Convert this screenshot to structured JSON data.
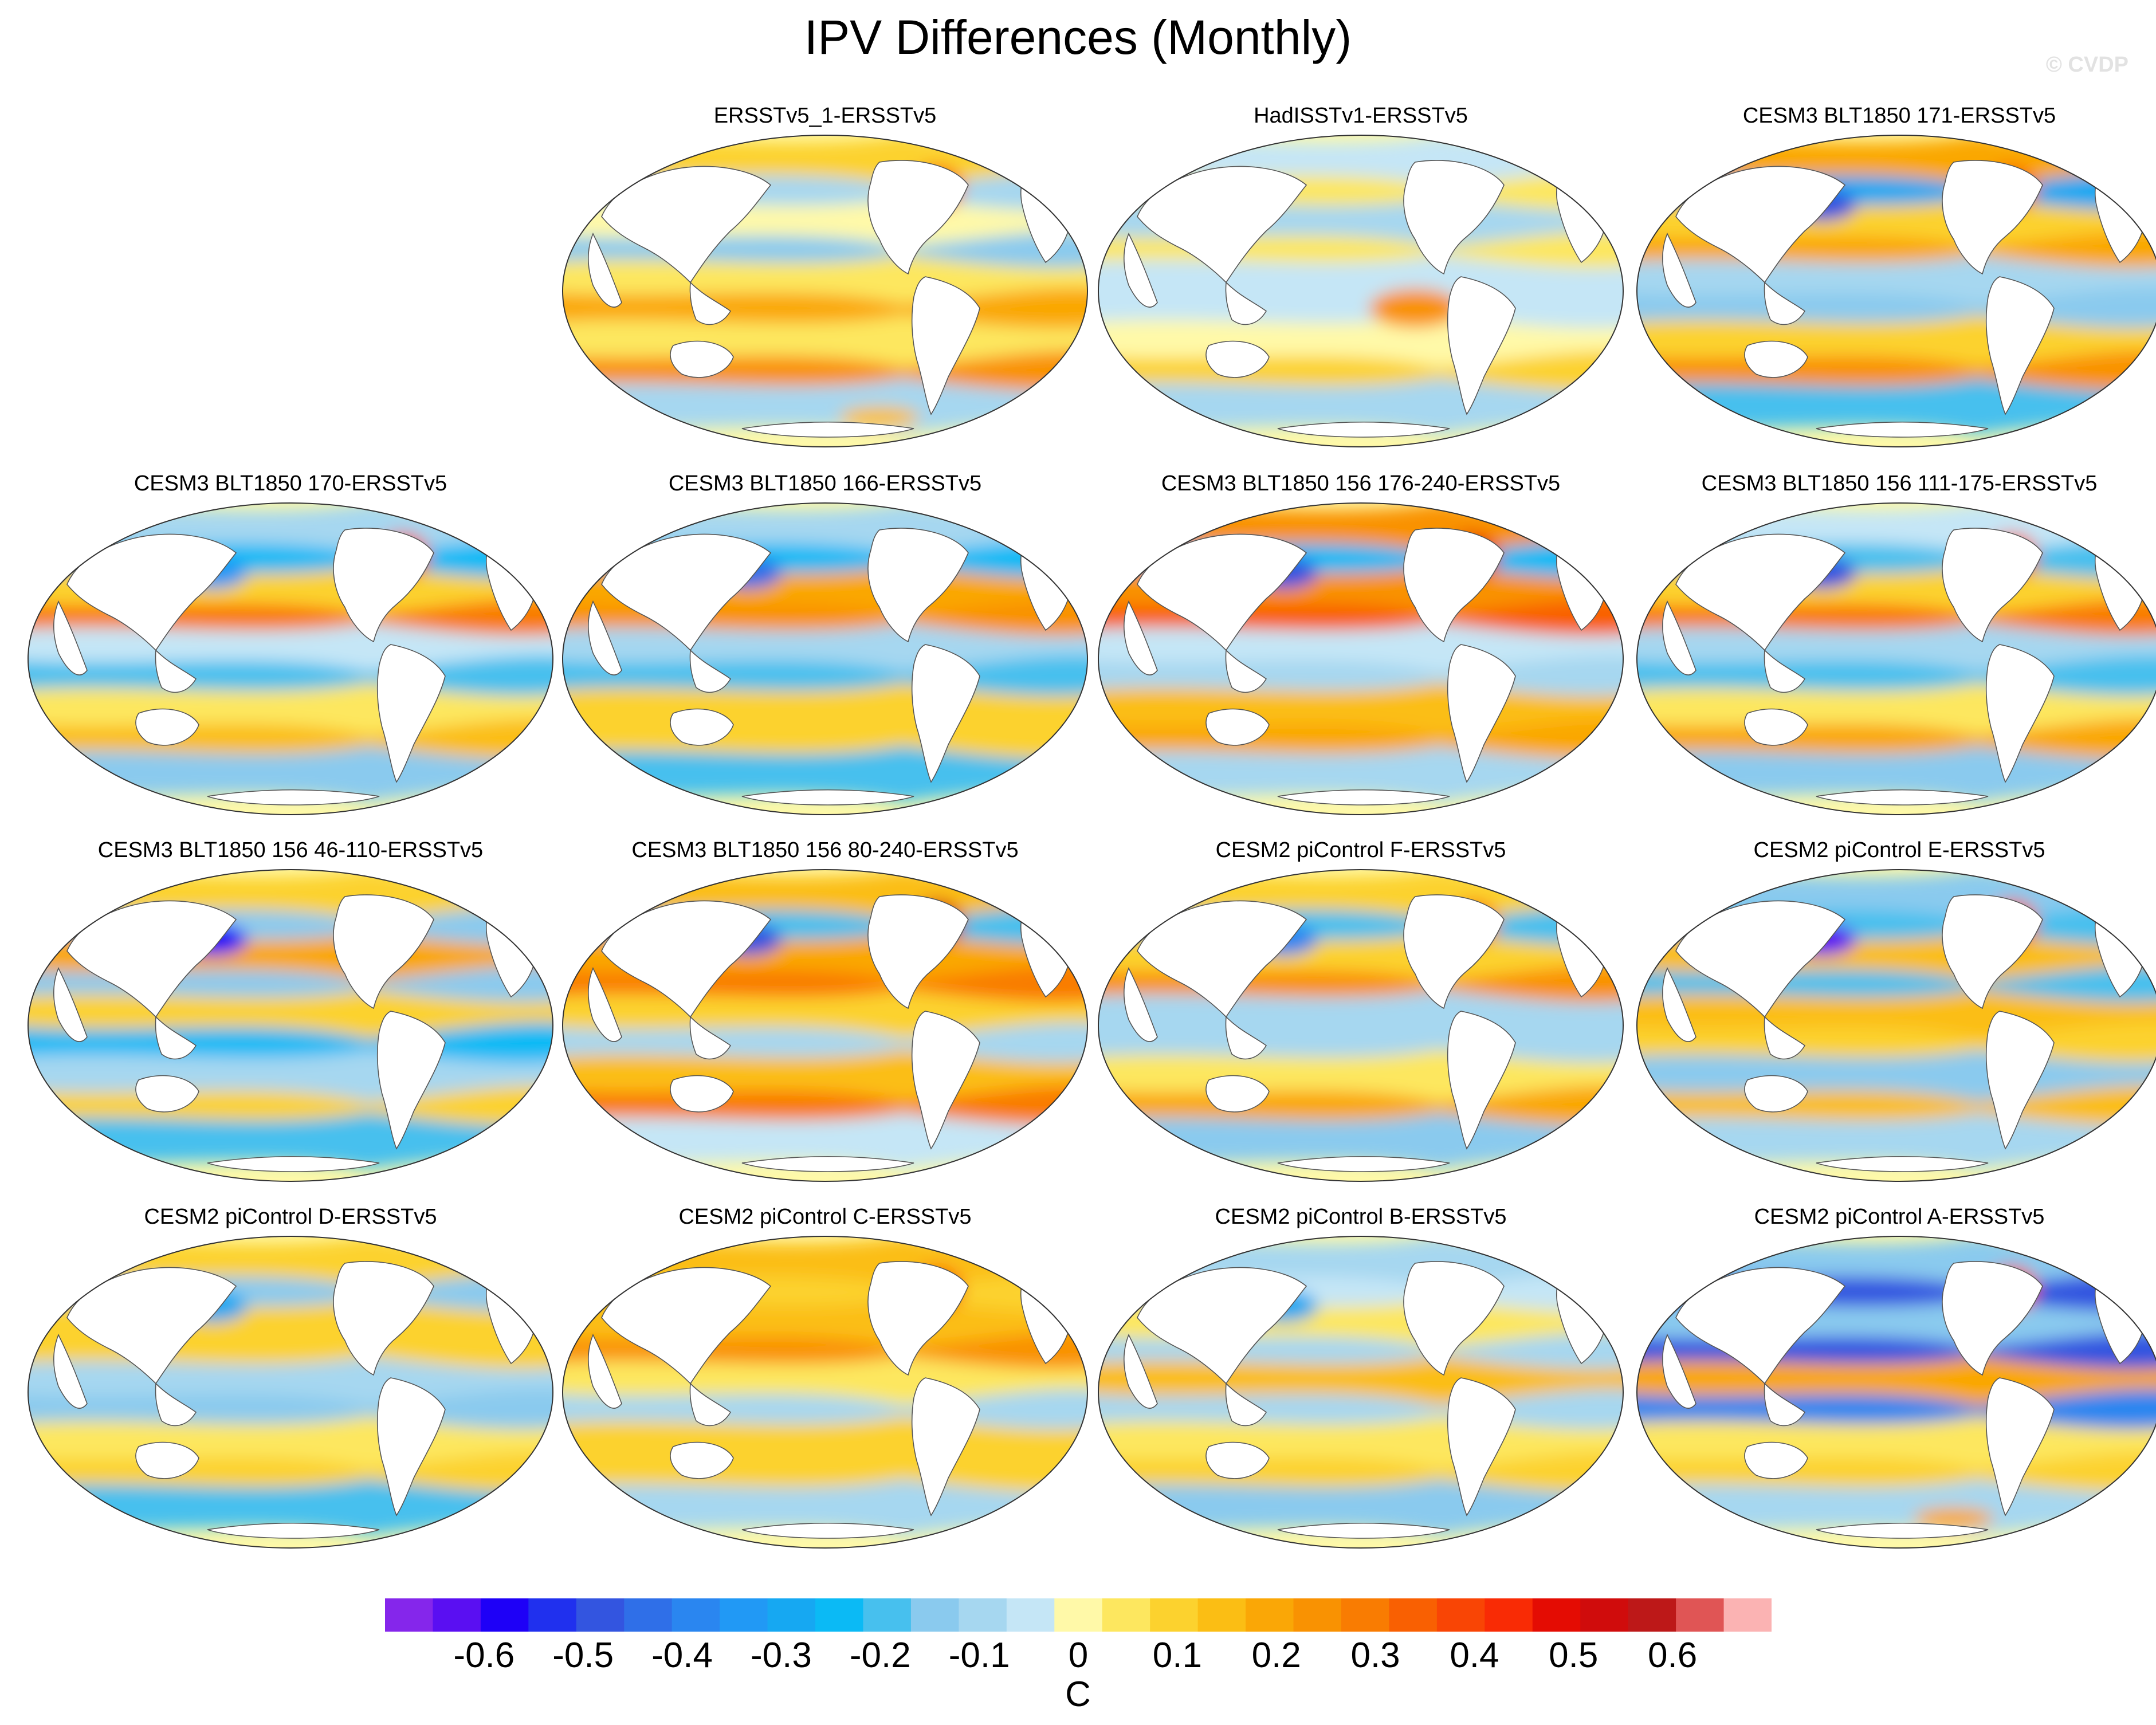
{
  "figure": {
    "title": "IPV Differences (Monthly)",
    "watermark": "© CVDP"
  },
  "panels": [
    {
      "title": "ERSSTv5_1-ERSSTv5",
      "pattern": [
        0.12,
        -0.12,
        0.0,
        -0.14,
        0.05,
        0.18,
        0.05,
        0.22,
        -0.08
      ],
      "blobs": [
        [
          3,
          0.35
        ],
        [
          2,
          0.15
        ]
      ]
    },
    {
      "title": "HadISSTv1-ERSSTv5",
      "pattern": [
        -0.05,
        0.03,
        -0.08,
        0.04,
        -0.05,
        -0.06,
        0.02,
        0.08,
        -0.1
      ],
      "blobs": [
        [
          1,
          0.25
        ]
      ]
    },
    {
      "title": "CESM3 BLT1850 171-ERSSTv5",
      "pattern": [
        0.18,
        -0.3,
        0.08,
        0.2,
        -0.12,
        -0.15,
        0.1,
        0.25,
        -0.2
      ],
      "blobs": [
        [
          0,
          -0.5
        ],
        [
          3,
          0.35
        ]
      ]
    },
    {
      "title": "CESM3 BLT1850 170-ERSSTv5",
      "pattern": [
        -0.12,
        -0.25,
        0.1,
        0.28,
        -0.05,
        -0.18,
        0.05,
        0.15,
        -0.15
      ],
      "blobs": [
        [
          0,
          -0.35
        ],
        [
          3,
          0.45
        ]
      ]
    },
    {
      "title": "CESM3 BLT1850 166-ERSSTv5",
      "pattern": [
        -0.1,
        -0.22,
        0.18,
        0.25,
        -0.12,
        -0.2,
        0.08,
        0.12,
        -0.18
      ],
      "blobs": [
        [
          0,
          -0.45
        ]
      ]
    },
    {
      "title": "CESM3 BLT1850 156 176-240-ERSSTv5",
      "pattern": [
        0.25,
        -0.22,
        0.25,
        0.35,
        -0.05,
        -0.12,
        0.15,
        0.2,
        -0.1
      ],
      "blobs": [
        [
          0,
          -0.5
        ],
        [
          3,
          0.5
        ]
      ]
    },
    {
      "title": "CESM3 BLT1850 156 111-175-ERSSTv5",
      "pattern": [
        -0.05,
        -0.2,
        0.1,
        0.28,
        -0.1,
        -0.2,
        0.05,
        0.18,
        -0.15
      ],
      "blobs": [
        [
          0,
          -0.5
        ],
        [
          3,
          0.4
        ]
      ]
    },
    {
      "title": "CESM3 BLT1850 156 46-110-ERSSTv5",
      "pattern": [
        0.12,
        -0.15,
        0.2,
        -0.15,
        0.12,
        -0.22,
        -0.1,
        0.1,
        -0.2
      ],
      "blobs": [
        [
          0,
          -0.6
        ]
      ]
    },
    {
      "title": "CESM3 BLT1850 156 80-240-ERSSTv5",
      "pattern": [
        0.15,
        -0.18,
        0.2,
        0.28,
        0.1,
        -0.1,
        0.15,
        0.3,
        -0.05
      ],
      "blobs": [
        [
          0,
          -0.5
        ],
        [
          3,
          0.55
        ]
      ]
    },
    {
      "title": "CESM2 piControl F-ERSSTv5",
      "pattern": [
        0.1,
        -0.2,
        0.1,
        0.22,
        -0.08,
        -0.12,
        0.05,
        0.2,
        -0.15
      ],
      "blobs": [
        [
          0,
          -0.4
        ],
        [
          3,
          0.3
        ]
      ]
    },
    {
      "title": "CESM2 piControl E-ERSSTv5",
      "pattern": [
        -0.15,
        -0.2,
        0.15,
        -0.2,
        0.15,
        0.1,
        -0.15,
        0.15,
        -0.1
      ],
      "blobs": [
        [
          0,
          -0.65
        ],
        [
          3,
          0.4
        ]
      ]
    },
    {
      "title": "CESM2 piControl D-ERSSTv5",
      "pattern": [
        0.12,
        -0.15,
        0.1,
        0.12,
        -0.1,
        -0.15,
        0.05,
        0.08,
        -0.18
      ],
      "blobs": [
        [
          0,
          -0.3
        ]
      ]
    },
    {
      "title": "CESM2 piControl C-ERSSTv5",
      "pattern": [
        0.15,
        0.12,
        0.15,
        0.22,
        0.05,
        -0.08,
        0.1,
        0.1,
        -0.1
      ],
      "blobs": [
        [
          3,
          0.35
        ]
      ]
    },
    {
      "title": "CESM2 piControl B-ERSSTv5",
      "pattern": [
        -0.1,
        -0.05,
        0.05,
        -0.12,
        0.15,
        -0.12,
        0.05,
        0.08,
        -0.15
      ],
      "blobs": [
        [
          0,
          -0.3
        ]
      ]
    },
    {
      "title": "CESM2 piControl A-ERSSTv5",
      "pattern": [
        -0.15,
        -0.5,
        -0.15,
        -0.5,
        0.2,
        -0.4,
        0.05,
        0.1,
        -0.1
      ],
      "blobs": [
        [
          3,
          0.45
        ],
        [
          2,
          0.2
        ]
      ]
    }
  ],
  "colorbar": {
    "units": "C",
    "range": [
      -0.7,
      0.7
    ],
    "colors": [
      "#8526eb",
      "#5a0ff2",
      "#1e00f7",
      "#2030ee",
      "#3355e0",
      "#2f6fe8",
      "#2a86f0",
      "#2199f5",
      "#16a8f2",
      "#0bbaf5",
      "#47c0ee",
      "#8acaee",
      "#a6d7f0",
      "#c5e6f6",
      "#fff9a8",
      "#fde75f",
      "#fcd22e",
      "#fbbe14",
      "#faa706",
      "#f99202",
      "#f97c02",
      "#f96002",
      "#f94505",
      "#f92b05",
      "#e40c03",
      "#d00c0c",
      "#bd1818",
      "#e05555",
      "#fbb3b3"
    ],
    "tick_labels": [
      "-0.6",
      "-0.5",
      "-0.4",
      "-0.3",
      "-0.2",
      "-0.1",
      "0",
      "0.1",
      "0.2",
      "0.3",
      "0.4",
      "0.5",
      "0.6"
    ],
    "tick_values": [
      -0.6,
      -0.5,
      -0.4,
      -0.3,
      -0.2,
      -0.1,
      0,
      0.1,
      0.2,
      0.3,
      0.4,
      0.5,
      0.6
    ]
  }
}
